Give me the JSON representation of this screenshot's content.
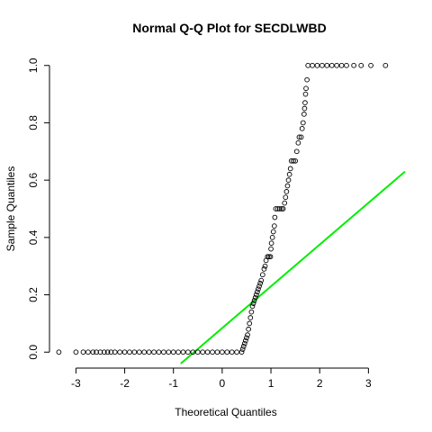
{
  "chart_data": {
    "type": "scatter",
    "title": "Normal Q-Q Plot for SECDLWBD",
    "xlabel": "Theoretical Quantiles",
    "ylabel": "Sample Quantiles",
    "x_ticks": [
      -3,
      -2,
      -1,
      0,
      1,
      2,
      3
    ],
    "y_ticks": [
      0.0,
      0.2,
      0.4,
      0.6,
      0.8,
      1.0
    ],
    "y_tick_labels": [
      "0.0",
      "0.2",
      "0.4",
      "0.6",
      "0.8",
      "1.0"
    ],
    "xlim": [
      -3.45,
      3.75
    ],
    "ylim": [
      -0.04,
      1.04
    ],
    "grid": false,
    "point_style": "open-circle",
    "series": [
      {
        "points": [
          [
            -3.35,
            0.0
          ],
          [
            -3.0,
            0.0
          ],
          [
            -2.85,
            0.0
          ],
          [
            -2.75,
            0.0
          ],
          [
            -2.65,
            0.0
          ],
          [
            -2.58,
            0.0
          ],
          [
            -2.5,
            0.0
          ],
          [
            -2.42,
            0.0
          ],
          [
            -2.35,
            0.0
          ],
          [
            -2.28,
            0.0
          ],
          [
            -2.2,
            0.0
          ],
          [
            -2.1,
            0.0
          ],
          [
            -2.0,
            0.0
          ],
          [
            -1.9,
            0.0
          ],
          [
            -1.8,
            0.0
          ],
          [
            -1.7,
            0.0
          ],
          [
            -1.6,
            0.0
          ],
          [
            -1.5,
            0.0
          ],
          [
            -1.4,
            0.0
          ],
          [
            -1.3,
            0.0
          ],
          [
            -1.2,
            0.0
          ],
          [
            -1.1,
            0.0
          ],
          [
            -1.0,
            0.0
          ],
          [
            -0.9,
            0.0
          ],
          [
            -0.8,
            0.0
          ],
          [
            -0.7,
            0.0
          ],
          [
            -0.6,
            0.0
          ],
          [
            -0.5,
            0.0
          ],
          [
            -0.4,
            0.0
          ],
          [
            -0.3,
            0.0
          ],
          [
            -0.2,
            0.0
          ],
          [
            -0.1,
            0.0
          ],
          [
            0.0,
            0.0
          ],
          [
            0.1,
            0.0
          ],
          [
            0.2,
            0.0
          ],
          [
            0.3,
            0.0
          ],
          [
            0.4,
            0.0
          ],
          [
            0.42,
            0.01
          ],
          [
            0.44,
            0.02
          ],
          [
            0.46,
            0.03
          ],
          [
            0.48,
            0.04
          ],
          [
            0.5,
            0.05
          ],
          [
            0.52,
            0.06
          ],
          [
            0.54,
            0.08
          ],
          [
            0.56,
            0.1
          ],
          [
            0.58,
            0.12
          ],
          [
            0.6,
            0.14
          ],
          [
            0.62,
            0.16
          ],
          [
            0.64,
            0.17
          ],
          [
            0.66,
            0.18
          ],
          [
            0.68,
            0.19
          ],
          [
            0.7,
            0.2
          ],
          [
            0.72,
            0.21
          ],
          [
            0.74,
            0.22
          ],
          [
            0.76,
            0.23
          ],
          [
            0.78,
            0.24
          ],
          [
            0.8,
            0.25
          ],
          [
            0.83,
            0.27
          ],
          [
            0.86,
            0.29
          ],
          [
            0.88,
            0.3
          ],
          [
            0.9,
            0.32
          ],
          [
            0.93,
            0.333
          ],
          [
            0.96,
            0.333
          ],
          [
            0.99,
            0.333
          ],
          [
            1.0,
            0.36
          ],
          [
            1.01,
            0.38
          ],
          [
            1.03,
            0.4
          ],
          [
            1.05,
            0.42
          ],
          [
            1.07,
            0.44
          ],
          [
            1.08,
            0.47
          ],
          [
            1.1,
            0.5
          ],
          [
            1.14,
            0.5
          ],
          [
            1.18,
            0.5
          ],
          [
            1.22,
            0.5
          ],
          [
            1.25,
            0.5
          ],
          [
            1.28,
            0.52
          ],
          [
            1.3,
            0.54
          ],
          [
            1.32,
            0.56
          ],
          [
            1.34,
            0.58
          ],
          [
            1.36,
            0.6
          ],
          [
            1.38,
            0.62
          ],
          [
            1.4,
            0.64
          ],
          [
            1.42,
            0.667
          ],
          [
            1.46,
            0.667
          ],
          [
            1.5,
            0.667
          ],
          [
            1.53,
            0.7
          ],
          [
            1.56,
            0.73
          ],
          [
            1.58,
            0.75
          ],
          [
            1.62,
            0.75
          ],
          [
            1.64,
            0.78
          ],
          [
            1.66,
            0.8
          ],
          [
            1.68,
            0.83
          ],
          [
            1.69,
            0.85
          ],
          [
            1.7,
            0.87
          ],
          [
            1.71,
            0.9
          ],
          [
            1.72,
            0.92
          ],
          [
            1.74,
            0.95
          ],
          [
            1.76,
            1.0
          ],
          [
            1.85,
            1.0
          ],
          [
            1.95,
            1.0
          ],
          [
            2.05,
            1.0
          ],
          [
            2.15,
            1.0
          ],
          [
            2.25,
            1.0
          ],
          [
            2.35,
            1.0
          ],
          [
            2.45,
            1.0
          ],
          [
            2.55,
            1.0
          ],
          [
            2.7,
            1.0
          ],
          [
            2.85,
            1.0
          ],
          [
            3.05,
            1.0
          ],
          [
            3.35,
            1.0
          ]
        ],
        "color": "#000000"
      }
    ],
    "reference_line": {
      "color": "#00ee00",
      "points": [
        [
          -0.85,
          -0.04
        ],
        [
          3.75,
          0.63
        ]
      ]
    }
  }
}
